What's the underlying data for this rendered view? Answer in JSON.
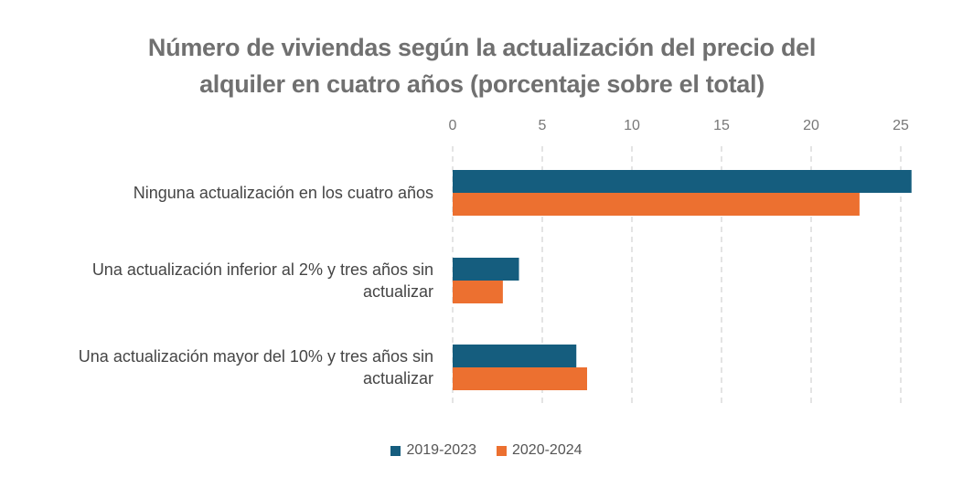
{
  "chart_data": {
    "type": "bar",
    "orientation": "horizontal",
    "title": "Número de viviendas según la actualización del precio del alquiler en cuatro años (porcentaje sobre el total)",
    "title_lines": [
      "Número de viviendas según la actualización del precio del",
      "alquiler en cuatro años (porcentaje sobre el total)"
    ],
    "categories": [
      "Ninguna actualización en los cuatro años",
      "Una actualización inferior al 2% y tres años sin actualizar",
      "Una actualización mayor del 10% y tres años sin actualizar"
    ],
    "category_lines": [
      [
        "Ninguna actualización en los cuatro años"
      ],
      [
        "Una actualización inferior al 2% y tres años sin",
        "actualizar"
      ],
      [
        "Una actualización mayor del 10% y tres años sin",
        "actualizar"
      ]
    ],
    "series": [
      {
        "name": "2019-2023",
        "color": "#155d7e",
        "values": [
          25.6,
          3.7,
          6.9
        ]
      },
      {
        "name": "2020-2024",
        "color": "#ec7030",
        "values": [
          22.7,
          2.8,
          7.5
        ]
      }
    ],
    "xlim": [
      0,
      25.6
    ],
    "xticks": [
      "0",
      "5",
      "10",
      "15",
      "20",
      "25"
    ],
    "xaxis_position": "top",
    "grid": "vertical dashed",
    "legend_position": "bottom"
  }
}
